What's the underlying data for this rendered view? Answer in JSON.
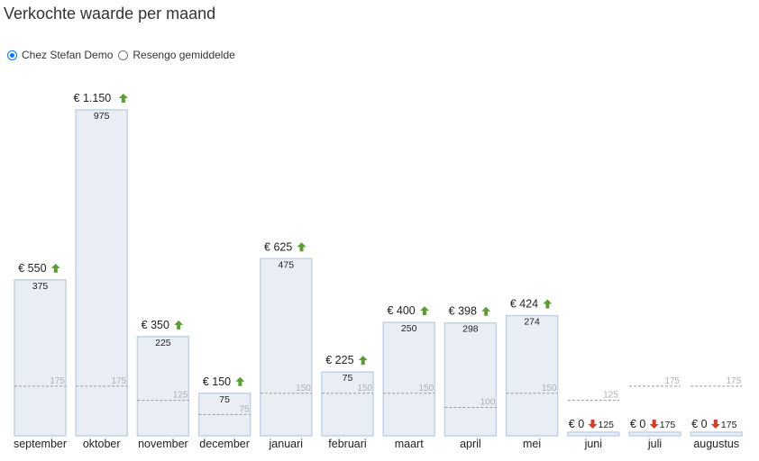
{
  "page": {
    "title": "Verkochte waarde per maand",
    "radio_options": [
      {
        "label": "Chez Stefan Demo",
        "checked": true
      },
      {
        "label": "Resengo gemiddelde",
        "checked": false
      }
    ]
  },
  "chart_data": {
    "type": "bar",
    "currency": "€",
    "categories": [
      "september",
      "oktober",
      "november",
      "december",
      "januari",
      "februari",
      "maart",
      "april",
      "mei",
      "juni",
      "juli",
      "augustus"
    ],
    "values": [
      550,
      1150,
      350,
      150,
      625,
      225,
      400,
      398,
      424,
      0,
      0,
      0
    ],
    "value_labels": [
      "€ 550",
      "€ 1.150",
      "€ 350",
      "€ 150",
      "€ 625",
      "€ 225",
      "€ 400",
      "€ 398",
      "€ 424",
      "€ 0",
      "€ 0",
      "€ 0"
    ],
    "comparison_values": [
      375,
      975,
      225,
      75,
      475,
      75,
      250,
      298,
      274,
      125,
      175,
      175
    ],
    "trend": [
      "up",
      "up",
      "up",
      "up",
      "up",
      "up",
      "up",
      "up",
      "up",
      "down",
      "down",
      "down"
    ],
    "reference_values": [
      175,
      175,
      125,
      75,
      150,
      150,
      150,
      100,
      150,
      125,
      175,
      175
    ],
    "ylim": [
      0,
      1150
    ],
    "colors": {
      "bar_fill": "#e9eef5",
      "bar_stroke": "#c3d2e6",
      "up_arrow": "#5a9e32",
      "down_arrow": "#e03a2a",
      "reference_line": "#9a9a9a"
    }
  }
}
